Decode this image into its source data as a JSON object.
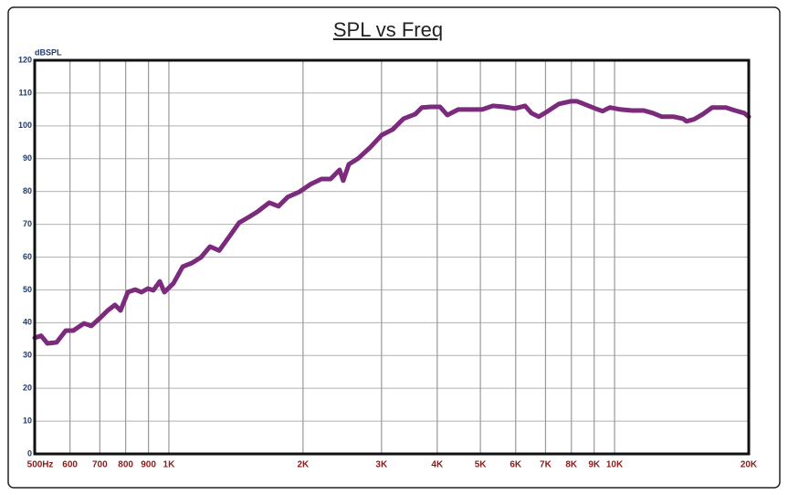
{
  "chart_data": {
    "type": "line",
    "title": "SPL vs Freq",
    "y_label": "dBSPL",
    "x_label": "Hz",
    "x_scale": "log",
    "grid": true,
    "xlim": [
      500,
      20000
    ],
    "xticks": [
      500,
      600,
      700,
      800,
      900,
      {
        "value": 1000,
        "label": "1K"
      },
      {
        "value": 2000,
        "label": "2K"
      },
      {
        "value": 3000,
        "label": "3K"
      },
      {
        "value": 4000,
        "label": "4K"
      },
      {
        "value": 5000,
        "label": "5K"
      },
      {
        "value": 6000,
        "label": "6K"
      },
      {
        "value": 7000,
        "label": "7K"
      },
      {
        "value": 8000,
        "label": "8K"
      },
      {
        "value": 9000,
        "label": "9K"
      },
      {
        "value": 10000,
        "label": "10K"
      },
      {
        "value": 20000,
        "label": "20K"
      }
    ],
    "ylim": [
      0,
      120
    ],
    "yticks": [
      0,
      10,
      20,
      30,
      40,
      50,
      60,
      70,
      80,
      90,
      100,
      110,
      120
    ],
    "x": [
      500,
      517,
      534,
      560,
      587,
      610,
      645,
      670,
      702,
      729,
      757,
      779,
      809,
      840,
      868,
      897,
      923,
      954,
      977,
      1024,
      1074,
      1126,
      1180,
      1237,
      1297,
      1372,
      1438,
      1508,
      1580,
      1680,
      1762,
      1847,
      1964,
      2078,
      2199,
      2305,
      2416,
      2462,
      2533,
      2655,
      2823,
      3002,
      3177,
      3362,
      3574,
      3695,
      3873,
      4059,
      4215,
      4461,
      4744,
      5044,
      5337,
      5648,
      5977,
      6296,
      6507,
      6758,
      7084,
      7496,
      7970,
      8237,
      8634,
      9050,
      9399,
      9760,
      10330,
      10932,
      11624,
      12184,
      12773,
      13580,
      14235,
      14506,
      15066,
      15793,
      16558,
      17775,
      18634,
      19533,
      20000
    ],
    "series": [
      {
        "name": "SPL",
        "color": "#7b2a7c",
        "values": [
          35.4,
          36,
          33.7,
          34,
          37.6,
          37.6,
          39.8,
          39,
          41.5,
          43.7,
          45.4,
          43.7,
          49.3,
          50.1,
          49.3,
          50.4,
          49.9,
          52.6,
          49.3,
          52,
          57.1,
          58.2,
          59.9,
          63.2,
          62,
          66.6,
          70.5,
          72.1,
          73.8,
          76.6,
          75.5,
          78.3,
          79.9,
          82.2,
          83.8,
          83.8,
          86.6,
          83.3,
          88.3,
          90,
          93.3,
          97.2,
          98.9,
          102.2,
          103.6,
          105.6,
          105.8,
          105.8,
          103.3,
          105,
          105,
          105,
          106.1,
          105.8,
          105.3,
          106.1,
          103.9,
          102.8,
          104.5,
          106.7,
          107.5,
          107.5,
          106.4,
          105.3,
          104.5,
          105.6,
          105,
          104.7,
          104.7,
          103.9,
          102.8,
          102.8,
          102.2,
          101.4,
          102,
          103.6,
          105.6,
          105.6,
          104.7,
          103.9,
          102.8
        ]
      }
    ]
  }
}
